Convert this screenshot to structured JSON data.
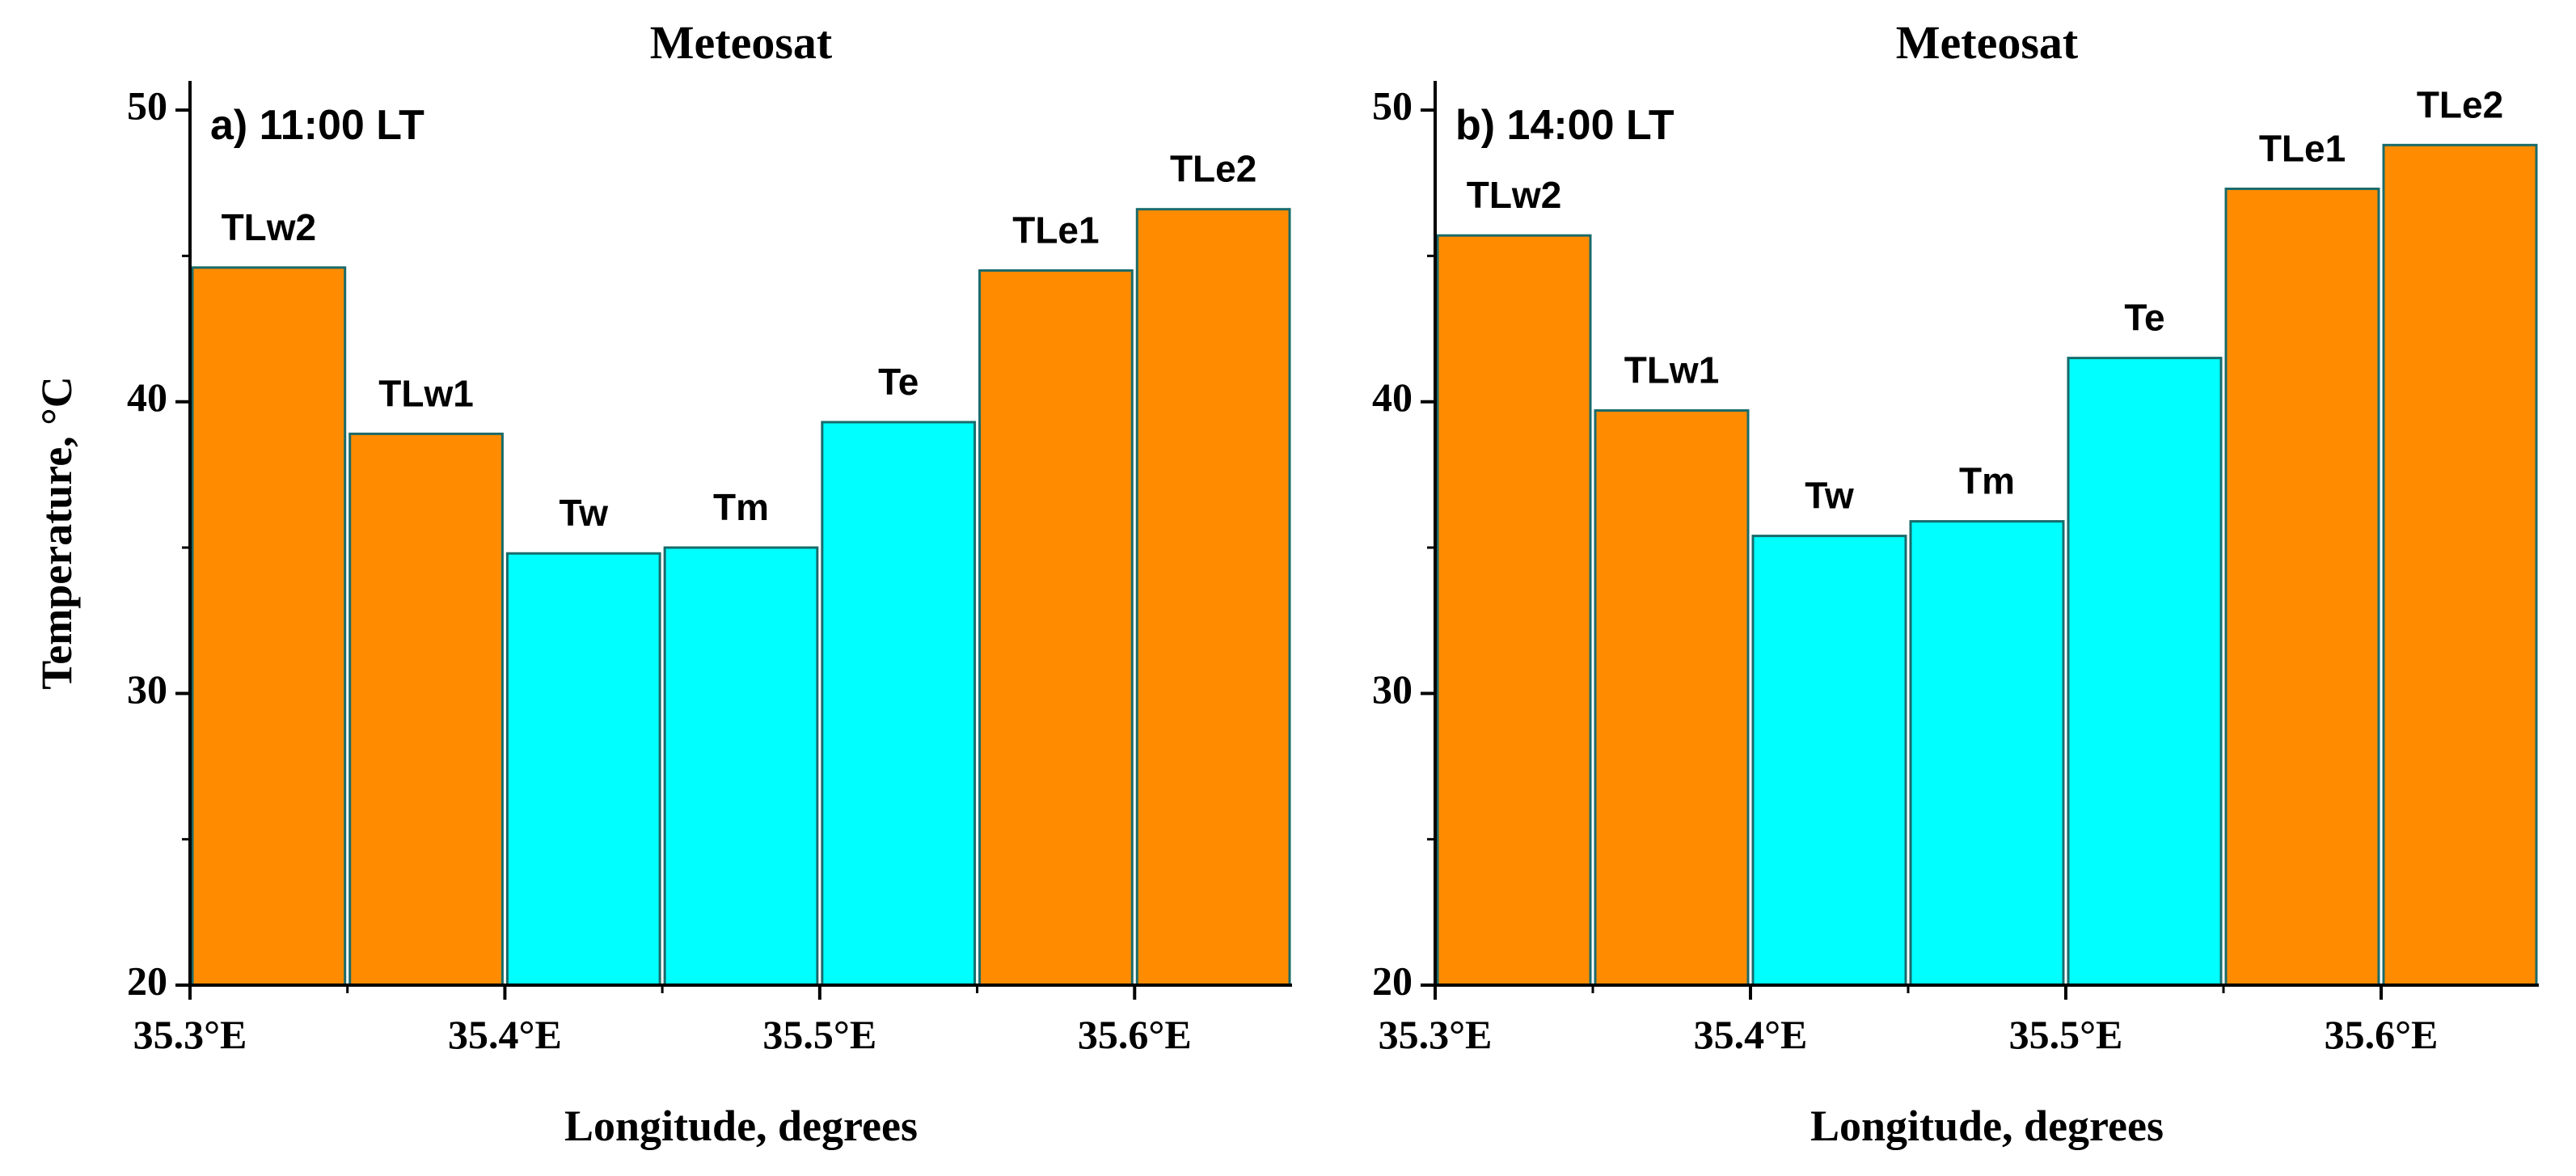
{
  "chart_data": [
    {
      "type": "bar",
      "title": "Meteosat",
      "panel_label": "a)  11:00 LT",
      "xlabel": "Longitude,  degrees",
      "ylabel": "Temperature,  °C",
      "xlim": [
        35.3,
        35.65
      ],
      "ylim": [
        20,
        51
      ],
      "yticks": [
        20,
        30,
        40,
        50
      ],
      "xticks": [
        35.3,
        35.4,
        35.5,
        35.6
      ],
      "xtick_labels": [
        "35.3°E",
        "35.4°E",
        "35.5°E",
        "35.6°E"
      ],
      "bar_width": 0.05,
      "bars": [
        {
          "label": "TLw2",
          "x_start": 35.3,
          "value": 44.6,
          "color": "#FF8C00"
        },
        {
          "label": "TLw1",
          "x_start": 35.35,
          "value": 38.9,
          "color": "#FF8C00"
        },
        {
          "label": "Tw",
          "x_start": 35.4,
          "value": 34.8,
          "color": "#00FFFF"
        },
        {
          "label": "Tm",
          "x_start": 35.45,
          "value": 35.0,
          "color": "#00FFFF"
        },
        {
          "label": "Te",
          "x_start": 35.5,
          "value": 39.3,
          "color": "#00FFFF"
        },
        {
          "label": "TLe1",
          "x_start": 35.55,
          "value": 44.5,
          "color": "#FF8C00"
        },
        {
          "label": "TLe2",
          "x_start": 35.6,
          "value": 46.6,
          "color": "#FF8C00"
        }
      ]
    },
    {
      "type": "bar",
      "title": "Meteosat",
      "panel_label": "b)  14:00 LT",
      "xlabel": "Longitude,  degrees",
      "ylabel": "",
      "xlim": [
        35.3,
        35.65
      ],
      "ylim": [
        20,
        51
      ],
      "yticks": [
        20,
        30,
        40,
        50
      ],
      "xticks": [
        35.3,
        35.4,
        35.5,
        35.6
      ],
      "xtick_labels": [
        "35.3°E",
        "35.4°E",
        "35.5°E",
        "35.6°E"
      ],
      "bar_width": 0.05,
      "bars": [
        {
          "label": "TLw2",
          "x_start": 35.3,
          "value": 45.7,
          "color": "#FF8C00"
        },
        {
          "label": "TLw1",
          "x_start": 35.35,
          "value": 39.7,
          "color": "#FF8C00"
        },
        {
          "label": "Tw",
          "x_start": 35.4,
          "value": 35.4,
          "color": "#00FFFF"
        },
        {
          "label": "Tm",
          "x_start": 35.45,
          "value": 35.9,
          "color": "#00FFFF"
        },
        {
          "label": "Te",
          "x_start": 35.5,
          "value": 41.5,
          "color": "#00FFFF"
        },
        {
          "label": "TLe1",
          "x_start": 35.55,
          "value": 47.3,
          "color": "#FF8C00"
        },
        {
          "label": "TLe2",
          "x_start": 35.6,
          "value": 48.8,
          "color": "#FF8C00"
        }
      ]
    }
  ],
  "colors": {
    "bar_edge": "#1a6b6b",
    "axis": "#000000"
  }
}
